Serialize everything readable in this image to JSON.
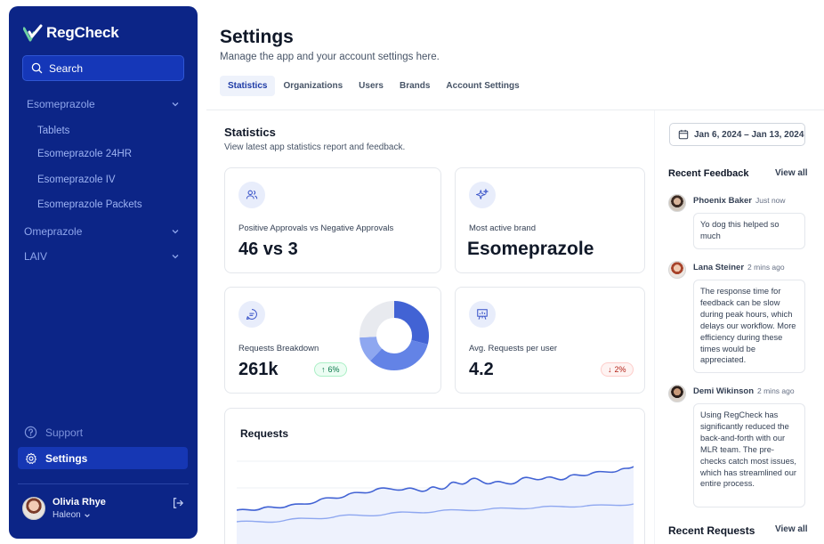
{
  "sidebar": {
    "brand": "RegCheck",
    "search_label": "Search",
    "groups": [
      {
        "label": "Esomeprazole",
        "expanded": true,
        "children": [
          "Tablets",
          "Esomeprazole 24HR",
          "Esomeprazole IV",
          "Esomeprazole Packets"
        ]
      },
      {
        "label": "Omeprazole",
        "expanded": false
      },
      {
        "label": "LAIV",
        "expanded": false
      }
    ],
    "support_label": "Support",
    "settings_label": "Settings",
    "user": {
      "name": "Olivia Rhye",
      "org": "Haleon"
    }
  },
  "header": {
    "title": "Settings",
    "subtitle": "Manage the app and your account settings here.",
    "tabs": [
      "Statistics",
      "Organizations",
      "Users",
      "Brands",
      "Account Settings"
    ],
    "active_tab": "Statistics"
  },
  "statistics": {
    "title": "Statistics",
    "subtitle": "View latest app statistics report and feedback.",
    "date_range": "Jan 6, 2024 – Jan 13, 2024",
    "cards": {
      "approvals": {
        "label": "Positive Approvals vs Negative Approvals",
        "value": "46 vs 3",
        "icon": "users-icon"
      },
      "brand": {
        "label": "Most active brand",
        "value": "Esomeprazole",
        "icon": "sparkles-icon"
      },
      "requests": {
        "label": "Requests Breakdown",
        "value": "261k",
        "badge": "6%",
        "trend": "up",
        "icon": "message-icon"
      },
      "avg": {
        "label": "Avg. Requests per user",
        "value": "4.2",
        "badge": "2%",
        "trend": "down",
        "icon": "presentation-icon"
      }
    },
    "donut": {
      "segments": [
        0.29,
        0.33,
        0.12,
        0.26
      ],
      "colors": [
        "#4263d4",
        "#6383e6",
        "#8ea7f0",
        "#e8eaef"
      ]
    },
    "requests_chart": {
      "title": "Requests"
    }
  },
  "feedback": {
    "title": "Recent Feedback",
    "view_all": "View all",
    "items": [
      {
        "name": "Phoenix Baker",
        "time": "Just now",
        "text": "Yo dog this helped so much"
      },
      {
        "name": "Lana Steiner",
        "time": "2 mins ago",
        "text": "The response time for feedback can be slow during peak hours, which delays our workflow. More efficiency during these times would be appreciated."
      },
      {
        "name": "Demi Wikinson",
        "time": "2 mins ago",
        "text": "Using RegCheck has significantly reduced the back-and-forth with our MLR team. The pre-checks catch most issues, which has streamlined our entire process."
      }
    ]
  },
  "recent_requests": {
    "title": "Recent Requests",
    "view_all": "View all"
  },
  "colors": {
    "sidebar": "#0c2587",
    "accent": "#1d3aa6",
    "chart_line": "#4263d4",
    "logo_green": "#6fd1a3"
  }
}
